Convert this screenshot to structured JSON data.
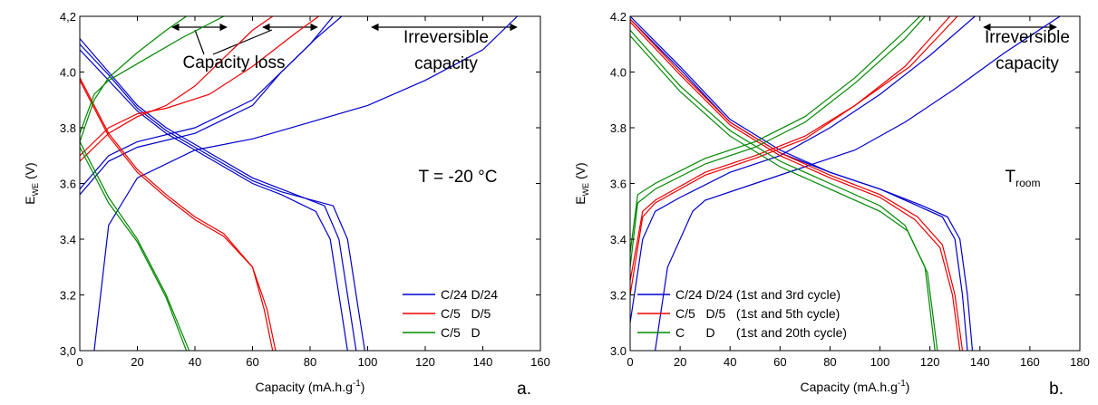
{
  "chart_data": [
    {
      "type": "line",
      "panel_label": "a.",
      "x_label": [
        "Capacity (mA.h.g",
        "-1",
        ")"
      ],
      "y_label": [
        "E",
        "WE",
        " (V)"
      ],
      "xlim": [
        0,
        160
      ],
      "ylim": [
        3.0,
        4.2
      ],
      "xticks": [
        0,
        20,
        40,
        60,
        80,
        100,
        120,
        140,
        160
      ],
      "yticks": [
        {
          "value": 3.0,
          "label": "3,0"
        },
        {
          "value": 3.2,
          "label": "3.2"
        },
        {
          "value": 3.4,
          "label": "3.4"
        },
        {
          "value": 3.6,
          "label": "3.6"
        },
        {
          "value": 3.8,
          "label": "3.8"
        },
        {
          "value": 4.0,
          "label": "4.0"
        },
        {
          "value": 4.2,
          "label": "4,2"
        }
      ],
      "legend": "lower right",
      "annotations": [
        "Capacity loss",
        "Irreversible",
        "capacity",
        "T = -20 °C"
      ],
      "series": [
        {
          "name": "C/24 D/24",
          "color": "#0000cc",
          "curves": [
            {
              "x": [
                5,
                10,
                20,
                40,
                60,
                80,
                100,
                120,
                140,
                152
              ],
              "values": [
                3.0,
                3.45,
                3.62,
                3.72,
                3.76,
                3.82,
                3.88,
                3.97,
                4.08,
                4.2
              ]
            },
            {
              "x": [
                0,
                10,
                20,
                40,
                60,
                70,
                80,
                88
              ],
              "values": [
                3.56,
                3.68,
                3.73,
                3.78,
                3.88,
                4.0,
                4.1,
                4.2
              ]
            },
            {
              "x": [
                0,
                10,
                20,
                40,
                60,
                72,
                82,
                91
              ],
              "values": [
                3.58,
                3.7,
                3.75,
                3.8,
                3.9,
                4.02,
                4.12,
                4.2
              ]
            },
            {
              "x": [
                0,
                10,
                20,
                30,
                40,
                50,
                60,
                70,
                85,
                90,
                93,
                96
              ],
              "values": [
                4.12,
                4.0,
                3.88,
                3.8,
                3.74,
                3.68,
                3.62,
                3.58,
                3.52,
                3.4,
                3.2,
                3.0
              ]
            },
            {
              "x": [
                0,
                10,
                20,
                30,
                40,
                50,
                60,
                70,
                88,
                93,
                96,
                99
              ],
              "values": [
                4.1,
                3.99,
                3.87,
                3.79,
                3.73,
                3.67,
                3.61,
                3.57,
                3.52,
                3.4,
                3.2,
                3.0
              ]
            },
            {
              "x": [
                0,
                10,
                20,
                30,
                40,
                50,
                60,
                70,
                82,
                87,
                90,
                93
              ],
              "values": [
                4.08,
                3.97,
                3.86,
                3.78,
                3.72,
                3.66,
                3.6,
                3.56,
                3.5,
                3.4,
                3.2,
                3.0
              ]
            }
          ]
        },
        {
          "name": "C/5   D/5",
          "color": "#ee0000",
          "curves": [
            {
              "x": [
                0,
                10,
                20,
                30,
                40,
                50,
                60,
                67
              ],
              "values": [
                3.68,
                3.78,
                3.84,
                3.88,
                3.95,
                4.05,
                4.15,
                4.2
              ]
            },
            {
              "x": [
                0,
                10,
                20,
                30,
                45,
                60,
                75,
                83
              ],
              "values": [
                3.7,
                3.8,
                3.85,
                3.87,
                3.92,
                4.02,
                4.14,
                4.2
              ]
            },
            {
              "x": [
                0,
                10,
                20,
                30,
                40,
                50,
                60,
                64,
                67
              ],
              "values": [
                3.98,
                3.78,
                3.65,
                3.56,
                3.48,
                3.42,
                3.3,
                3.15,
                3.0
              ]
            },
            {
              "x": [
                0,
                10,
                20,
                30,
                40,
                50,
                60,
                65,
                68
              ],
              "values": [
                3.97,
                3.77,
                3.64,
                3.55,
                3.47,
                3.41,
                3.3,
                3.15,
                3.0
              ]
            }
          ]
        },
        {
          "name": "C/5   D",
          "color": "#008800",
          "curves": [
            {
              "x": [
                0,
                5,
                10,
                20,
                30,
                37
              ],
              "values": [
                3.75,
                3.9,
                3.98,
                4.07,
                4.15,
                4.2
              ]
            },
            {
              "x": [
                0,
                5,
                10,
                20,
                35,
                50
              ],
              "values": [
                3.78,
                3.92,
                3.97,
                4.03,
                4.12,
                4.2
              ]
            },
            {
              "x": [
                0,
                10,
                20,
                30,
                38
              ],
              "values": [
                3.75,
                3.55,
                3.4,
                3.2,
                3.0
              ]
            },
            {
              "x": [
                0,
                10,
                20,
                30,
                37
              ],
              "values": [
                3.73,
                3.53,
                3.39,
                3.19,
                3.0
              ]
            }
          ]
        }
      ]
    },
    {
      "type": "line",
      "panel_label": "b.",
      "x_label": [
        "Capacity (mA.h.g",
        "-1",
        ")"
      ],
      "y_label": [
        "E",
        "WE",
        " (V)"
      ],
      "xlim": [
        0,
        180
      ],
      "ylim": [
        3.0,
        4.2
      ],
      "xticks": [
        0,
        20,
        40,
        60,
        80,
        100,
        120,
        140,
        160,
        180
      ],
      "yticks": [
        {
          "value": 3.0,
          "label": "3.0"
        },
        {
          "value": 3.2,
          "label": "3.2"
        },
        {
          "value": 3.4,
          "label": "3.4"
        },
        {
          "value": 3.6,
          "label": "3.6"
        },
        {
          "value": 3.8,
          "label": "3.8"
        },
        {
          "value": 4.0,
          "label": "4.0"
        },
        {
          "value": 4.2,
          "label": "4.2"
        }
      ],
      "legend": "lower left",
      "annotations": [
        "Irreversible",
        "capacity",
        {
          "main": "T",
          "sub": "room"
        }
      ],
      "series": [
        {
          "name": "C/24 D/24 (1st and 3rd cycle)",
          "color": "#0000cc",
          "curves": [
            {
              "x": [
                10,
                15,
                25,
                30,
                50,
                70,
                90,
                110,
                130,
                150,
                172
              ],
              "values": [
                3.0,
                3.3,
                3.5,
                3.54,
                3.6,
                3.66,
                3.72,
                3.82,
                3.94,
                4.07,
                4.2
              ]
            },
            {
              "x": [
                0,
                5,
                10,
                20,
                40,
                60,
                80,
                100,
                120,
                138
              ],
              "values": [
                3.1,
                3.4,
                3.5,
                3.55,
                3.64,
                3.7,
                3.8,
                3.92,
                4.06,
                4.2
              ]
            },
            {
              "x": [
                0,
                20,
                40,
                60,
                80,
                100,
                115,
                125,
                130,
                133,
                135
              ],
              "values": [
                4.2,
                4.02,
                3.83,
                3.72,
                3.64,
                3.58,
                3.52,
                3.48,
                3.4,
                3.2,
                3.0
              ]
            },
            {
              "x": [
                0,
                20,
                40,
                60,
                80,
                100,
                117,
                127,
                132,
                135,
                137
              ],
              "values": [
                4.19,
                4.01,
                3.82,
                3.71,
                3.64,
                3.58,
                3.52,
                3.48,
                3.4,
                3.2,
                3.0
              ]
            }
          ]
        },
        {
          "name": "C/5   D/5   (1st and 5th cycle)",
          "color": "#ee0000",
          "curves": [
            {
              "x": [
                0,
                5,
                10,
                30,
                50,
                70,
                90,
                110,
                128
              ],
              "values": [
                3.2,
                3.48,
                3.53,
                3.63,
                3.69,
                3.76,
                3.88,
                4.02,
                4.2
              ]
            },
            {
              "x": [
                0,
                5,
                10,
                30,
                50,
                70,
                90,
                112,
                131
              ],
              "values": [
                3.25,
                3.5,
                3.54,
                3.64,
                3.7,
                3.77,
                3.88,
                4.02,
                4.2
              ]
            },
            {
              "x": [
                0,
                20,
                40,
                60,
                80,
                100,
                115,
                125,
                130,
                133
              ],
              "values": [
                4.19,
                4.0,
                3.82,
                3.71,
                3.63,
                3.56,
                3.48,
                3.38,
                3.2,
                3.0
              ]
            },
            {
              "x": [
                0,
                20,
                40,
                60,
                80,
                100,
                114,
                124,
                129,
                132
              ],
              "values": [
                4.18,
                3.99,
                3.81,
                3.7,
                3.62,
                3.55,
                3.47,
                3.37,
                3.2,
                3.0
              ]
            }
          ]
        },
        {
          "name": "C      D      (1st and 20th cycle)",
          "color": "#008800",
          "curves": [
            {
              "x": [
                0,
                3,
                10,
                30,
                50,
                70,
                90,
                110,
                118
              ],
              "values": [
                3.3,
                3.53,
                3.58,
                3.67,
                3.73,
                3.82,
                3.96,
                4.12,
                4.2
              ]
            },
            {
              "x": [
                0,
                3,
                10,
                30,
                50,
                70,
                90,
                108,
                116
              ],
              "values": [
                3.35,
                3.56,
                3.6,
                3.69,
                3.75,
                3.84,
                3.98,
                4.13,
                4.2
              ]
            },
            {
              "x": [
                0,
                20,
                40,
                60,
                80,
                100,
                110,
                118,
                122
              ],
              "values": [
                4.15,
                3.95,
                3.79,
                3.68,
                3.6,
                3.52,
                3.45,
                3.3,
                3.0
              ]
            },
            {
              "x": [
                0,
                20,
                40,
                60,
                80,
                100,
                111,
                119,
                123
              ],
              "values": [
                4.13,
                3.93,
                3.77,
                3.66,
                3.58,
                3.5,
                3.43,
                3.28,
                3.0
              ]
            }
          ]
        }
      ]
    }
  ]
}
